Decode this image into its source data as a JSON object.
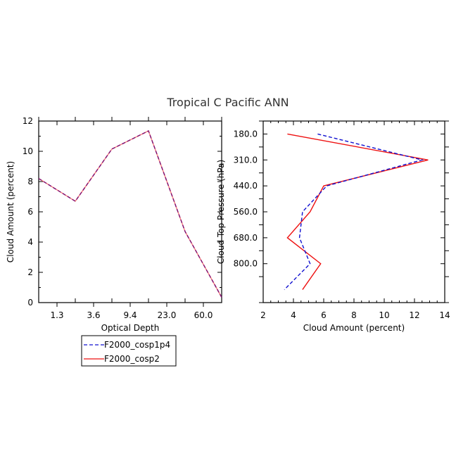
{
  "colors": {
    "blue_series": "#1010d0",
    "red_series": "#ee1111",
    "blend_overlap": "#6a1a9e"
  },
  "chart_data": [
    {
      "type": "line",
      "title": "Tropical C Pacific ANN",
      "xlabel": "Optical Depth",
      "ylabel": "Cloud Amount (percent)",
      "x_tick_labels": [
        "1.3",
        "3.6",
        "9.4",
        "23.0",
        "60.0"
      ],
      "x_bins": 5,
      "y_ticks": [
        "0",
        "2",
        "4",
        "6",
        "8",
        "10",
        "12"
      ],
      "ylim": [
        0,
        12
      ],
      "series": [
        {
          "name": "F2000_cosp1p4",
          "style": "dashed",
          "color": "#1010d0",
          "x": [
            0,
            1,
            2,
            3,
            4,
            5
          ],
          "y": [
            8.2,
            6.7,
            10.15,
            11.35,
            4.7,
            0.35
          ]
        },
        {
          "name": "F2000_cosp2",
          "style": "solid",
          "color": "#ee1111",
          "x": [
            0,
            1,
            2,
            3,
            4,
            5
          ],
          "y": [
            8.2,
            6.7,
            10.15,
            11.35,
            4.7,
            0.35
          ]
        }
      ]
    },
    {
      "type": "line",
      "xlabel": "Cloud Amount (percent)",
      "ylabel": "Cloud Top Pressure (hPa)",
      "x_ticks": [
        "2",
        "4",
        "6",
        "8",
        "10",
        "12",
        "14"
      ],
      "xlim": [
        2,
        14
      ],
      "y_tick_labels": [
        "180.0",
        "310.0",
        "440.0",
        "560.0",
        "680.0",
        "800.0"
      ],
      "y_levels": 7,
      "series": [
        {
          "name": "F2000_cosp1p4",
          "style": "dashed",
          "color": "#1010d0",
          "level": [
            0,
            1,
            2,
            3,
            4,
            5,
            6
          ],
          "x": [
            5.6,
            12.5,
            6.2,
            4.6,
            4.4,
            5.1,
            3.4
          ]
        },
        {
          "name": "F2000_cosp2",
          "style": "solid",
          "color": "#ee1111",
          "level": [
            0,
            1,
            2,
            3,
            4,
            5,
            6
          ],
          "x": [
            3.6,
            12.9,
            6.0,
            5.1,
            3.6,
            5.8,
            4.6
          ]
        }
      ]
    }
  ],
  "legend": {
    "placement": "below-left",
    "items": [
      {
        "label": "F2000_cosp1p4",
        "style": "dashed",
        "color": "#1010d0"
      },
      {
        "label": "F2000_cosp2",
        "style": "solid",
        "color": "#ee1111"
      }
    ]
  }
}
